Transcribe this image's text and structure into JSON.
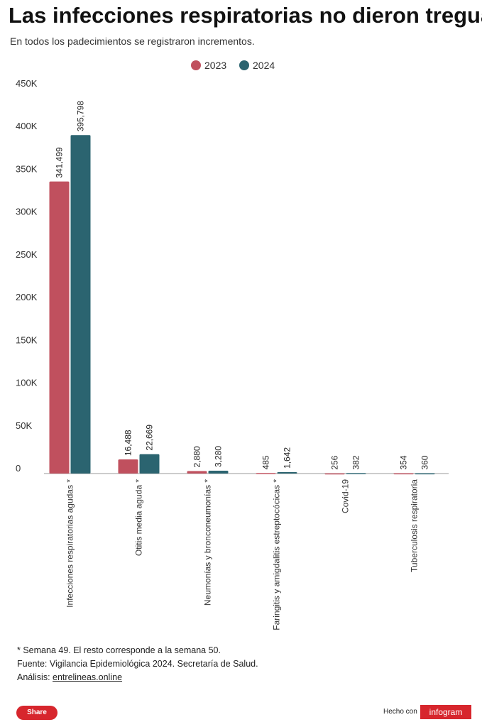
{
  "chart_data": {
    "type": "bar",
    "title": "Las infecciones respiratorias no dieron tregua",
    "subtitle": "En todos los padecimientos se registraron incrementos.",
    "categories": [
      "Infecciones respiratorias agudas *",
      "Otitis media aguda *",
      "Neumonías y bronconeumonías *",
      "Faringitis y amigdalitis estreptocócicas *",
      "Covid-19",
      "Tuberculosis respiratoria"
    ],
    "series": [
      {
        "name": "2023",
        "color": "#c0505e",
        "values": [
          341499,
          16488,
          2880,
          485,
          256,
          354
        ],
        "value_labels": [
          "341,499",
          "16,488",
          "2,880",
          "485",
          "256",
          "354"
        ]
      },
      {
        "name": "2024",
        "color": "#2b6470",
        "values": [
          395798,
          22669,
          3280,
          1642,
          382,
          360
        ],
        "value_labels": [
          "395,798",
          "22,669",
          "3,280",
          "1,642",
          "382",
          "360"
        ]
      }
    ],
    "ylim": [
      0,
      450000
    ],
    "yticks": [
      0,
      {
        "value": 50000,
        "label": "50K"
      },
      {
        "value": 100000,
        "label": "100K"
      },
      {
        "value": 150000,
        "label": "150K"
      },
      {
        "value": 200000,
        "label": "200K"
      },
      {
        "value": 250000,
        "label": "250K"
      },
      {
        "value": 300000,
        "label": "300K"
      },
      {
        "value": 350000,
        "label": "350K"
      },
      {
        "value": 400000,
        "label": "400K"
      },
      {
        "value": 450000,
        "label": "450K"
      }
    ],
    "legend": "top"
  },
  "notes": [
    "* Semana 49. El resto corresponde a la semana 50.",
    "Fuente: Vigilancia Epidemiológica 2024. Secretaría de Salud."
  ],
  "analysis": {
    "label": "Análisis:",
    "link": "entrelineas.online"
  },
  "footer": {
    "share": "Share",
    "made_with": "Hecho con",
    "brand": "infogram"
  }
}
